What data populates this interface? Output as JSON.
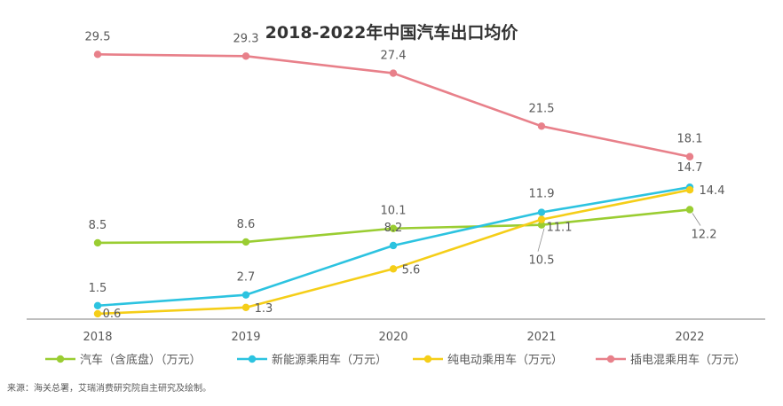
{
  "chart_data": {
    "type": "line",
    "title": "2018-2022年中国汽车出口均价",
    "xlabel": "",
    "ylabel": "",
    "categories": [
      "2018",
      "2019",
      "2020",
      "2021",
      "2022"
    ],
    "ylim": [
      0,
      32
    ],
    "grid": false,
    "legend_position": "bottom",
    "series": [
      {
        "name": "汽车（含底盘）（万元）",
        "color": "#9ACD32",
        "values": [
          8.5,
          8.6,
          10.1,
          10.5,
          12.2
        ],
        "labels": [
          "8.5",
          "8.6",
          "10.1",
          "10.5",
          "12.2"
        ]
      },
      {
        "name": "新能源乘用车（万元）",
        "color": "#2CC3E0",
        "values": [
          1.5,
          2.7,
          8.2,
          11.9,
          14.7
        ],
        "labels": [
          "1.5",
          "2.7",
          "8.2",
          "11.9",
          "14.7"
        ]
      },
      {
        "name": "纯电动乘用车（万元）",
        "color": "#F5CE18",
        "values": [
          0.6,
          1.3,
          5.6,
          11.1,
          14.4
        ],
        "labels": [
          "0.6",
          "1.3",
          "5.6",
          "11.1",
          "14.4"
        ]
      },
      {
        "name": "插电混乘用车（万元）",
        "color": "#E8808A",
        "values": [
          29.5,
          29.3,
          27.4,
          21.5,
          18.1
        ],
        "labels": [
          "29.5",
          "29.3",
          "27.4",
          "21.5",
          "18.1"
        ]
      }
    ]
  },
  "source_note": "来源：海关总署，艾瑞消费研究院自主研究及绘制。"
}
